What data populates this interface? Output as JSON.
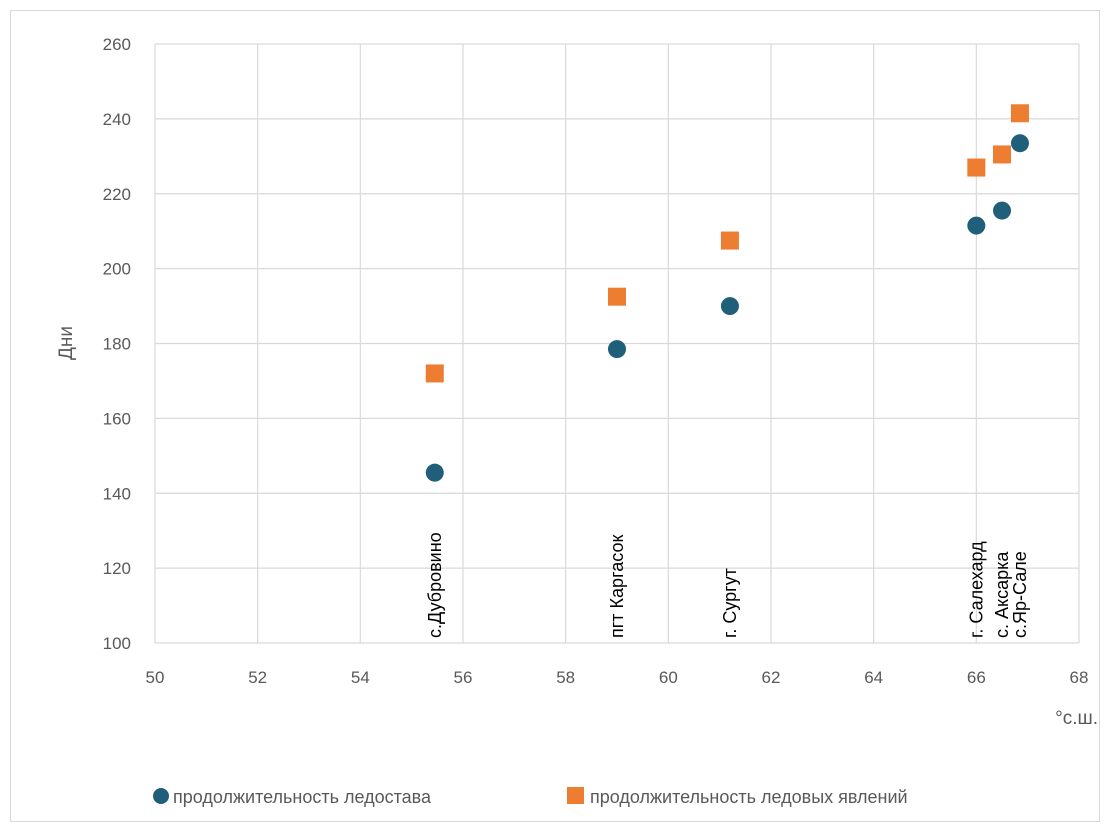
{
  "chart_data": {
    "type": "scatter",
    "title": "",
    "xlabel": "°с.ш.",
    "ylabel": "Дни",
    "xlim": [
      50,
      68
    ],
    "ylim": [
      100,
      260
    ],
    "xticks": [
      50,
      52,
      54,
      56,
      58,
      60,
      62,
      64,
      66,
      68
    ],
    "yticks": [
      100,
      120,
      140,
      160,
      180,
      200,
      220,
      240,
      260
    ],
    "grid": true,
    "legend_position": "bottom",
    "series": [
      {
        "name": "продолжительность  ледостава",
        "marker": "circle",
        "color": "#1f5f7a",
        "points": [
          {
            "x": 55.45,
            "y": 145.5
          },
          {
            "x": 59.0,
            "y": 178.5
          },
          {
            "x": 61.2,
            "y": 190.0
          },
          {
            "x": 66.0,
            "y": 211.5
          },
          {
            "x": 66.5,
            "y": 215.5
          },
          {
            "x": 66.85,
            "y": 233.5
          }
        ]
      },
      {
        "name": "продолжительность  ледовых явлений",
        "marker": "square",
        "color": "#ed7d31",
        "points": [
          {
            "x": 55.45,
            "y": 172.0
          },
          {
            "x": 59.0,
            "y": 192.5
          },
          {
            "x": 61.2,
            "y": 207.5
          },
          {
            "x": 66.0,
            "y": 227.0
          },
          {
            "x": 66.5,
            "y": 230.5
          },
          {
            "x": 66.85,
            "y": 241.5
          }
        ]
      }
    ],
    "annotations": [
      {
        "text": "с.Дубровино",
        "x": 55.45
      },
      {
        "text": "пгт Каргасок",
        "x": 59.0
      },
      {
        "text": "г. Сургут",
        "x": 61.2
      },
      {
        "text": "г. Салехард",
        "x": 66.0
      },
      {
        "text": "с. Аксарка",
        "x": 66.5
      },
      {
        "text": "с.Яр-Сале",
        "x": 66.85
      }
    ]
  }
}
